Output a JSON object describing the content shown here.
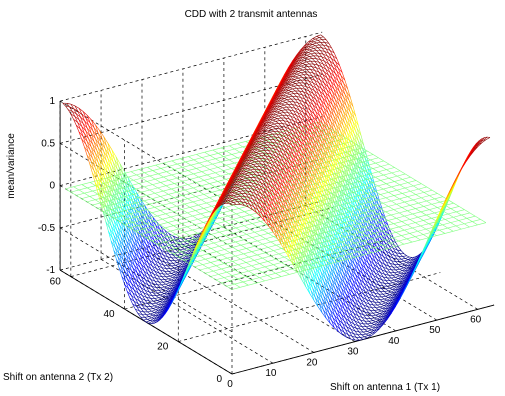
{
  "chart_data": {
    "type": "surface",
    "title": "CDD with 2 transmit antennas",
    "xlabel": "Shift on antenna 1 (Tx 1)",
    "ylabel": "Shift on antenna 2 (Tx 2)",
    "zlabel": "mean/variance",
    "xlim": [
      0,
      64
    ],
    "ylim": [
      0,
      64
    ],
    "zlim": [
      -1,
      1
    ],
    "x_ticks": [
      0,
      10,
      20,
      30,
      40,
      50,
      60
    ],
    "y_ticks": [
      0,
      20,
      40,
      60
    ],
    "z_ticks": [
      -1,
      -0.5,
      0,
      0.5,
      1
    ],
    "x_tick_labels": [
      "0",
      "10",
      "20",
      "30",
      "40",
      "50",
      "60"
    ],
    "y_tick_labels": [
      "0",
      "20",
      "40",
      "60"
    ],
    "z_tick_labels": [
      "-1",
      "-0.5",
      "0",
      "0.5",
      "1"
    ],
    "grid": true,
    "series": [
      {
        "function": "cos(2*pi*(x - y)/64)",
        "grid_step": 1,
        "x_range": [
          0,
          63
        ],
        "y_range": [
          0,
          63
        ],
        "colormap": "jet"
      },
      {
        "function": "0",
        "grid_step": 2,
        "x_range": [
          0,
          63
        ],
        "y_range": [
          0,
          63
        ],
        "color": "#7fff7f"
      }
    ]
  }
}
